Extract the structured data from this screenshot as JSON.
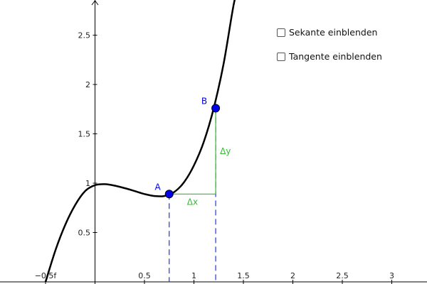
{
  "graph": {
    "x_ticks": [
      {
        "value": -0.5,
        "label": "−0.5f"
      },
      {
        "value": 0.5,
        "label": "0.5"
      },
      {
        "value": 1,
        "label": "1"
      },
      {
        "value": 1.5,
        "label": "1.5"
      },
      {
        "value": 2,
        "label": "2"
      },
      {
        "value": 2.5,
        "label": "2.5"
      },
      {
        "value": 3,
        "label": "3"
      }
    ],
    "y_ticks": [
      {
        "value": 0.5,
        "label": "0.5"
      },
      {
        "value": 1,
        "label": "1"
      },
      {
        "value": 1.5,
        "label": "1.5"
      },
      {
        "value": 2,
        "label": "2"
      },
      {
        "value": 2.5,
        "label": "2.5"
      }
    ],
    "function_curve": {
      "color": "#000000",
      "samples": [
        [
          -0.5,
          0.0
        ],
        [
          -0.4,
          0.32
        ],
        [
          -0.3,
          0.58
        ],
        [
          -0.2,
          0.78
        ],
        [
          -0.1,
          0.92
        ],
        [
          0.0,
          0.98
        ],
        [
          0.1,
          0.99
        ],
        [
          0.2,
          0.975
        ],
        [
          0.3,
          0.95
        ],
        [
          0.4,
          0.92
        ],
        [
          0.5,
          0.89
        ],
        [
          0.6,
          0.87
        ],
        [
          0.7,
          0.87
        ],
        [
          0.8,
          0.91
        ],
        [
          0.9,
          1.01
        ],
        [
          1.0,
          1.18
        ],
        [
          1.1,
          1.42
        ],
        [
          1.2,
          1.76
        ],
        [
          1.3,
          2.21
        ],
        [
          1.4,
          2.8
        ],
        [
          1.45,
          3.0
        ]
      ]
    },
    "point_a": {
      "label": "A",
      "x": 0.75,
      "y": 0.89,
      "color": "#0000ee"
    },
    "point_b": {
      "label": "B",
      "x": 1.22,
      "y": 1.76,
      "color": "#0000ee"
    },
    "delta_x_label": "Δx",
    "delta_y_label": "Δy",
    "delta_color": "#33bb33",
    "projection_color": "#2233dd"
  },
  "controls": {
    "show_secant": {
      "label": "Sekante einblenden",
      "checked": false
    },
    "show_tangent": {
      "label": "Tangente einblenden",
      "checked": false
    }
  }
}
